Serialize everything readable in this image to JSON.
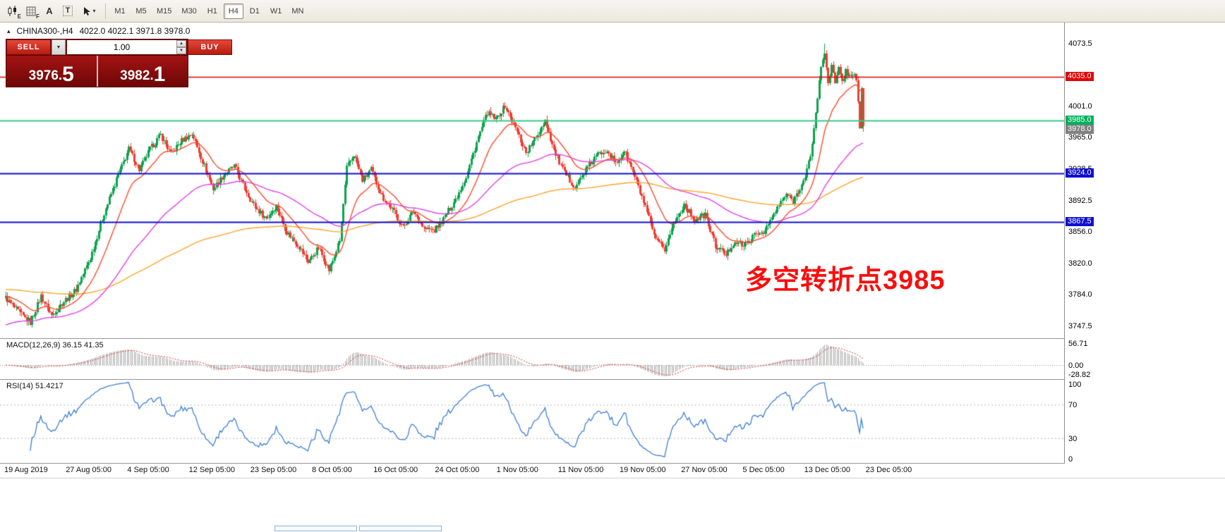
{
  "toolbar": {
    "icons": [
      {
        "name": "candlestick-chart",
        "badge": "E"
      },
      {
        "name": "grid",
        "badge": "F"
      },
      {
        "name": "font",
        "label": "A"
      },
      {
        "name": "text",
        "label": "T"
      },
      {
        "name": "cursor",
        "caret": "▾"
      }
    ],
    "timeframes": [
      {
        "label": "M1"
      },
      {
        "label": "M5"
      },
      {
        "label": "M15"
      },
      {
        "label": "M30"
      },
      {
        "label": "H1"
      },
      {
        "label": "H4",
        "active": true
      },
      {
        "label": "D1"
      },
      {
        "label": "W1"
      },
      {
        "label": "MN"
      }
    ]
  },
  "chart": {
    "collapse_arrow": "▴",
    "symbol": "CHINA300-,H4",
    "ohlc": "4022.0 4022.1 3971.8 3978.0",
    "annotation": {
      "text": "多空转折点3985",
      "color": "#fb0d0d"
    }
  },
  "trade_panel": {
    "sell_label": "SELL",
    "buy_label": "BUY",
    "volume": "1.00",
    "dropdown_glyph": "▼",
    "spin_up": "▲",
    "spin_down": "▼",
    "sell_price_main": "3976.",
    "sell_price_big": "5",
    "buy_price_main": "3982.",
    "buy_price_big": "1"
  },
  "price_axis": {
    "labels": [
      "4073.5",
      "4037.0",
      "4001.0",
      "3965.0",
      "3928.5",
      "3892.5",
      "3856.0",
      "3820.0",
      "3784.0",
      "3747.5"
    ],
    "badges": [
      {
        "value": "4035.0",
        "price": 4035.0,
        "color": "#e30000",
        "line": true,
        "line_color": "#e30000",
        "line_width": 1.4
      },
      {
        "value": "3985.0",
        "price": 3985.0,
        "color": "#00b05c",
        "line": true,
        "line_color": "#35cc87",
        "line_width": 2
      },
      {
        "value": "3978.0",
        "price": 3978.0,
        "color": "#808080",
        "line": false
      },
      {
        "value": "3924.0",
        "price": 3924.0,
        "color": "#0f0fd0",
        "line": true,
        "line_color": "#0f0fd0",
        "line_width": 2
      },
      {
        "value": "3867.5",
        "price": 3867.5,
        "color": "#0f0fd0",
        "line": true,
        "line_color": "#0f0fd0",
        "line_width": 2
      }
    ]
  },
  "macd_panel": {
    "label": "MACD(12,26,9) 36.15 41.35",
    "scale": [
      "56.71",
      "0.00",
      "-28.82"
    ],
    "scale_values": [
      56.71,
      0,
      -28.82
    ]
  },
  "rsi_panel": {
    "label": "RSI(14) 51.4217",
    "scale": [
      "100",
      "70",
      "30",
      "0"
    ],
    "scale_values": [
      100,
      70,
      30,
      0
    ],
    "levels": [
      70,
      30
    ]
  },
  "time_axis": {
    "labels": [
      "19 Aug 2019",
      "27 Aug 05:00",
      "4 Sep 05:00",
      "12 Sep 05:00",
      "23 Sep 05:00",
      "8 Oct 05:00",
      "16 Oct 05:00",
      "24 Oct 05:00",
      "1 Nov 05:00",
      "11 Nov 05:00",
      "19 Nov 05:00",
      "27 Nov 05:00",
      "5 Dec 05:00",
      "13 Dec 05:00",
      "23 Dec 05:00"
    ]
  },
  "chart_data": {
    "type": "candlestick",
    "symbol": "CHINA300",
    "timeframe": "H4",
    "title": "CHINA300-,H4",
    "price_range": [
      3733.5,
      4098
    ],
    "bars": 489,
    "note": "anchor points [barIndex, approxClose] read from the screenshot; candles interpolated",
    "anchors": [
      [
        0,
        3780
      ],
      [
        8,
        3762
      ],
      [
        14,
        3752
      ],
      [
        20,
        3782
      ],
      [
        26,
        3760
      ],
      [
        32,
        3774
      ],
      [
        40,
        3790
      ],
      [
        48,
        3826
      ],
      [
        56,
        3878
      ],
      [
        64,
        3922
      ],
      [
        70,
        3952
      ],
      [
        76,
        3928
      ],
      [
        82,
        3952
      ],
      [
        88,
        3968
      ],
      [
        94,
        3946
      ],
      [
        100,
        3962
      ],
      [
        106,
        3970
      ],
      [
        112,
        3938
      ],
      [
        118,
        3906
      ],
      [
        124,
        3922
      ],
      [
        130,
        3932
      ],
      [
        136,
        3906
      ],
      [
        142,
        3884
      ],
      [
        148,
        3872
      ],
      [
        154,
        3886
      ],
      [
        160,
        3856
      ],
      [
        166,
        3842
      ],
      [
        172,
        3822
      ],
      [
        178,
        3838
      ],
      [
        184,
        3812
      ],
      [
        190,
        3846
      ],
      [
        194,
        3930
      ],
      [
        198,
        3946
      ],
      [
        203,
        3916
      ],
      [
        208,
        3928
      ],
      [
        214,
        3898
      ],
      [
        220,
        3882
      ],
      [
        226,
        3862
      ],
      [
        232,
        3880
      ],
      [
        238,
        3860
      ],
      [
        244,
        3858
      ],
      [
        250,
        3874
      ],
      [
        256,
        3894
      ],
      [
        262,
        3920
      ],
      [
        268,
        3960
      ],
      [
        274,
        3994
      ],
      [
        279,
        3986
      ],
      [
        284,
        4002
      ],
      [
        290,
        3976
      ],
      [
        296,
        3948
      ],
      [
        302,
        3966
      ],
      [
        307,
        3986
      ],
      [
        312,
        3950
      ],
      [
        318,
        3924
      ],
      [
        324,
        3908
      ],
      [
        330,
        3928
      ],
      [
        336,
        3944
      ],
      [
        342,
        3952
      ],
      [
        347,
        3934
      ],
      [
        352,
        3950
      ],
      [
        358,
        3920
      ],
      [
        364,
        3884
      ],
      [
        370,
        3846
      ],
      [
        375,
        3836
      ],
      [
        380,
        3866
      ],
      [
        386,
        3888
      ],
      [
        392,
        3870
      ],
      [
        398,
        3876
      ],
      [
        404,
        3840
      ],
      [
        410,
        3830
      ],
      [
        415,
        3846
      ],
      [
        420,
        3840
      ],
      [
        426,
        3852
      ],
      [
        432,
        3858
      ],
      [
        438,
        3880
      ],
      [
        444,
        3900
      ],
      [
        448,
        3892
      ],
      [
        452,
        3908
      ],
      [
        455,
        3918
      ],
      [
        458,
        3945
      ],
      [
        460,
        3975
      ],
      [
        462,
        4012
      ],
      [
        464,
        4046
      ],
      [
        466,
        4064
      ],
      [
        468,
        4030
      ],
      [
        470,
        4048
      ],
      [
        472,
        4028
      ],
      [
        474,
        4044
      ],
      [
        476,
        4030
      ],
      [
        478,
        4042
      ],
      [
        480,
        4036
      ],
      [
        482,
        4040
      ],
      [
        484,
        4034
      ],
      [
        485,
        4004
      ],
      [
        486,
        3976
      ],
      [
        487,
        4022
      ],
      [
        488,
        3978
      ]
    ],
    "spike_high": {
      "index": 466,
      "price": 4073.5
    },
    "last_bar": {
      "open": 4022.0,
      "high": 4022.1,
      "low": 3971.8,
      "close": 3978.0
    },
    "horizontal_lines": [
      4035.0,
      3985.0,
      3924.0,
      3867.5
    ],
    "ma": [
      {
        "period": 250,
        "color": "#ffa42b",
        "seed": 3790
      },
      {
        "period": 80,
        "color": "#e241e8",
        "seed": 3748
      },
      {
        "period": 20,
        "color": "#ff4a2a"
      }
    ],
    "up_color": "#0ca34d",
    "down_color": "#f23b2f",
    "indicators": [
      {
        "name": "MACD",
        "params": [
          12,
          26,
          9
        ],
        "values": [
          36.15,
          41.35
        ],
        "scale": [
          56.71,
          -28.82
        ]
      },
      {
        "name": "RSI",
        "params": [
          14
        ],
        "value": 51.4217,
        "levels": [
          70,
          30
        ]
      }
    ]
  }
}
